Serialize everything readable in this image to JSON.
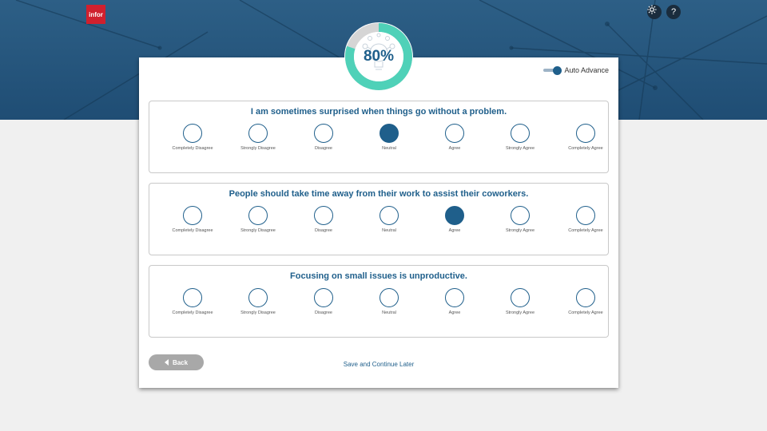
{
  "header": {
    "logo_text": "infor",
    "theme_icon": "brightness-icon",
    "help_icon": "help-icon",
    "help_glyph": "?"
  },
  "progress": {
    "percent_label": "80%",
    "value": 0.8,
    "icon": "lightbulb-network-icon",
    "accent_color": "#4fd1b8"
  },
  "auto_advance": {
    "label": "Auto Advance",
    "enabled": true
  },
  "questions": [
    {
      "text": "I am sometimes surprised when things go without a problem.",
      "selected_index": 3,
      "options": [
        "Completely Disagree",
        "Strongly Disagree",
        "Disagree",
        "Neutral",
        "Agree",
        "Strongly Agree",
        "Completely Agree"
      ]
    },
    {
      "text": "People should take time away from their work to assist their coworkers.",
      "selected_index": 4,
      "options": [
        "Completely Disagree",
        "Strongly Disagree",
        "Disagree",
        "Neutral",
        "Agree",
        "Strongly Agree",
        "Completely Agree"
      ]
    },
    {
      "text": "Focusing on small issues is unproductive.",
      "selected_index": null,
      "options": [
        "Completely Disagree",
        "Strongly Disagree",
        "Disagree",
        "Neutral",
        "Agree",
        "Strongly Agree",
        "Completely Agree"
      ]
    }
  ],
  "footer": {
    "back_label": "Back",
    "save_label": "Save and Continue Later"
  },
  "colors": {
    "primary": "#1f5f8b",
    "header_bg": "#2d5f86",
    "logo_red": "#d0202e"
  }
}
